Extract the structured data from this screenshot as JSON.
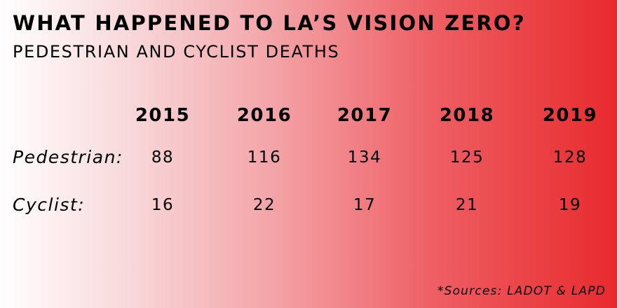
{
  "title": "WHAT HAPPENED TO LA’S VISION ZERO?",
  "subtitle": "PEDESTRIAN AND CYCLIST DEATHS",
  "source": "*Sources: LADOT & LAPD",
  "colors": {
    "gradient_start": "#ffffff",
    "gradient_end": "#e82a2d",
    "text": "#000000"
  },
  "chart_data": {
    "type": "table",
    "title": "WHAT HAPPENED TO LA’S VISION ZERO?",
    "subtitle": "PEDESTRIAN AND CYCLIST DEATHS",
    "columns": [
      "2015",
      "2016",
      "2017",
      "2018",
      "2019"
    ],
    "rows": [
      {
        "label": "Pedestrian:",
        "values": [
          88,
          116,
          134,
          125,
          128
        ]
      },
      {
        "label": "Cyclist:",
        "values": [
          16,
          22,
          17,
          21,
          19
        ]
      }
    ]
  }
}
